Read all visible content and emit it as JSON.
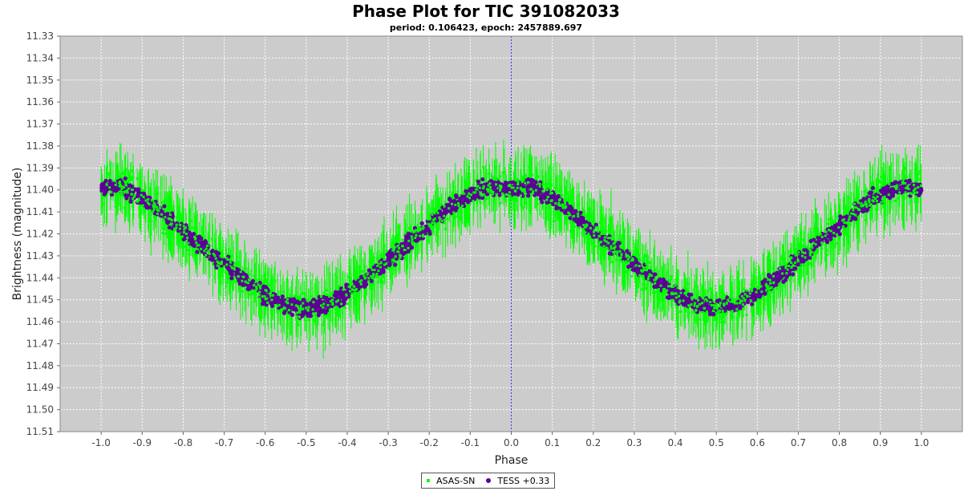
{
  "chart_data": {
    "type": "scatter",
    "title": "Phase Plot for TIC 391082033",
    "subtitle": "period: 0.106423, epoch: 2457889.697",
    "xlabel": "Phase",
    "ylabel": "Brightness (magnitude)",
    "xlim": [
      -1.1,
      1.1
    ],
    "ylim": [
      11.33,
      11.51
    ],
    "y_inverted": true,
    "x_ticks": [
      "-1.0",
      "-0.9",
      "-0.8",
      "-0.7",
      "-0.6",
      "-0.5",
      "-0.4",
      "-0.3",
      "-0.2",
      "-0.1",
      "0.0",
      "0.1",
      "0.2",
      "0.3",
      "0.4",
      "0.5",
      "0.6",
      "0.7",
      "0.8",
      "0.9",
      "1.0"
    ],
    "y_ticks": [
      "11.33",
      "11.34",
      "11.35",
      "11.36",
      "11.37",
      "11.38",
      "11.39",
      "11.40",
      "11.41",
      "11.42",
      "11.43",
      "11.44",
      "11.45",
      "11.46",
      "11.47",
      "11.48",
      "11.49",
      "11.50",
      "11.51"
    ],
    "grid": true,
    "background": "#cccccc",
    "legend_position": "bottom-center",
    "series": [
      {
        "name": "ASAS-SN",
        "color": "#00ff00",
        "error_bars": true,
        "x": [
          -1.0,
          -0.95,
          -0.9,
          -0.85,
          -0.8,
          -0.75,
          -0.7,
          -0.65,
          -0.6,
          -0.55,
          -0.5,
          -0.45,
          -0.4,
          -0.35,
          -0.3,
          -0.25,
          -0.2,
          -0.15,
          -0.1,
          -0.05,
          0.0,
          0.05,
          0.1,
          0.15,
          0.2,
          0.25,
          0.3,
          0.35,
          0.4,
          0.45,
          0.5,
          0.55,
          0.6,
          0.65,
          0.7,
          0.75,
          0.8,
          0.85,
          0.9,
          0.95,
          1.0
        ],
        "y": [
          11.4,
          11.398,
          11.404,
          11.411,
          11.419,
          11.426,
          11.434,
          11.441,
          11.448,
          11.452,
          11.454,
          11.452,
          11.447,
          11.44,
          11.432,
          11.424,
          11.416,
          11.408,
          11.402,
          11.399,
          11.4,
          11.398,
          11.404,
          11.411,
          11.419,
          11.426,
          11.434,
          11.441,
          11.448,
          11.452,
          11.454,
          11.452,
          11.447,
          11.44,
          11.432,
          11.424,
          11.416,
          11.408,
          11.402,
          11.399,
          11.4
        ]
      },
      {
        "name": "TESS +0.33",
        "color": "#5d0096",
        "error_bars": false,
        "x": [
          -1.0,
          -0.95,
          -0.9,
          -0.85,
          -0.8,
          -0.75,
          -0.7,
          -0.65,
          -0.6,
          -0.55,
          -0.5,
          -0.45,
          -0.4,
          -0.35,
          -0.3,
          -0.25,
          -0.2,
          -0.15,
          -0.1,
          -0.05,
          0.0,
          0.05,
          0.1,
          0.15,
          0.2,
          0.25,
          0.3,
          0.35,
          0.4,
          0.45,
          0.5,
          0.55,
          0.6,
          0.65,
          0.7,
          0.75,
          0.8,
          0.85,
          0.9,
          0.95,
          1.0
        ],
        "y": [
          11.4,
          11.398,
          11.404,
          11.411,
          11.419,
          11.426,
          11.434,
          11.441,
          11.448,
          11.452,
          11.454,
          11.452,
          11.447,
          11.44,
          11.432,
          11.424,
          11.416,
          11.408,
          11.402,
          11.399,
          11.4,
          11.398,
          11.404,
          11.411,
          11.419,
          11.426,
          11.434,
          11.441,
          11.448,
          11.452,
          11.454,
          11.452,
          11.447,
          11.44,
          11.432,
          11.424,
          11.416,
          11.408,
          11.402,
          11.399,
          11.4
        ]
      }
    ]
  }
}
